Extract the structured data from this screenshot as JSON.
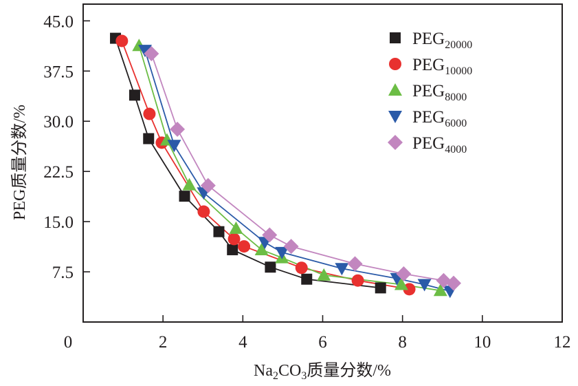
{
  "chart_data": {
    "type": "line",
    "title": "",
    "xlabel": "Na2CO3质量分数/%",
    "xlabel_parts": {
      "pre": "Na",
      "sub1": "2",
      "mid": "CO",
      "sub2": "3",
      "post": "质量分数/%"
    },
    "ylabel": "PEG质量分数/%",
    "xlim": [
      0,
      12
    ],
    "ylim": [
      0,
      47.5
    ],
    "xticks": [
      0,
      2,
      4,
      6,
      8,
      10,
      12
    ],
    "xtick_labels": [
      "0",
      "2",
      "4",
      "6",
      "8",
      "10",
      "12"
    ],
    "yticks": [
      7.5,
      15.0,
      22.5,
      30.0,
      37.5,
      45.0
    ],
    "ytick_labels": [
      "7.5",
      "15.0",
      "22.5",
      "30.0",
      "37.5",
      "45.0"
    ],
    "grid": false,
    "legend_position": "top-right",
    "series": [
      {
        "name": "PEG20000",
        "base": "PEG",
        "sub": "20000",
        "marker": "square",
        "color": "#231f20",
        "line_color": "#231f20",
        "x": [
          0.81,
          1.29,
          1.64,
          2.54,
          3.4,
          3.74,
          4.69,
          5.6,
          7.45
        ],
        "y": [
          42.4,
          33.9,
          27.4,
          18.8,
          13.5,
          10.8,
          8.2,
          6.4,
          5.1
        ]
      },
      {
        "name": "PEG10000",
        "base": "PEG",
        "sub": "10000",
        "marker": "circle",
        "color": "#e8312f",
        "line_color": "#e8312f",
        "x": [
          0.97,
          1.66,
          1.97,
          3.02,
          3.78,
          4.03,
          5.47,
          6.88,
          8.17
        ],
        "y": [
          42.0,
          31.1,
          26.8,
          16.5,
          12.4,
          11.3,
          8.1,
          6.2,
          4.9
        ]
      },
      {
        "name": "PEG8000",
        "base": "PEG",
        "sub": "8000",
        "marker": "triangle-up",
        "color": "#6cbd45",
        "line_color": "#6cbd45",
        "x": [
          1.4,
          2.1,
          2.66,
          3.83,
          4.47,
          4.98,
          6.03,
          7.97,
          8.95
        ],
        "y": [
          41.3,
          27.2,
          20.5,
          14.0,
          10.8,
          9.6,
          7.0,
          5.6,
          4.7
        ]
      },
      {
        "name": "PEG6000",
        "base": "PEG",
        "sub": "6000",
        "marker": "triangle-down",
        "color": "#2a5aa8",
        "line_color": "#2a5aa8",
        "x": [
          1.55,
          2.28,
          3.02,
          4.55,
          4.98,
          6.48,
          7.86,
          8.55,
          9.19
        ],
        "y": [
          40.6,
          26.4,
          19.3,
          11.9,
          10.4,
          8.0,
          6.5,
          5.6,
          4.6
        ]
      },
      {
        "name": "PEG4000",
        "base": "PEG",
        "sub": "4000",
        "marker": "diamond",
        "color": "#c286bf",
        "line_color": "#c286bf",
        "x": [
          1.71,
          2.36,
          3.13,
          4.67,
          5.21,
          6.81,
          8.03,
          9.03,
          9.28
        ],
        "y": [
          40.1,
          28.8,
          20.4,
          13.0,
          11.3,
          8.7,
          7.2,
          6.2,
          5.8
        ]
      }
    ]
  }
}
